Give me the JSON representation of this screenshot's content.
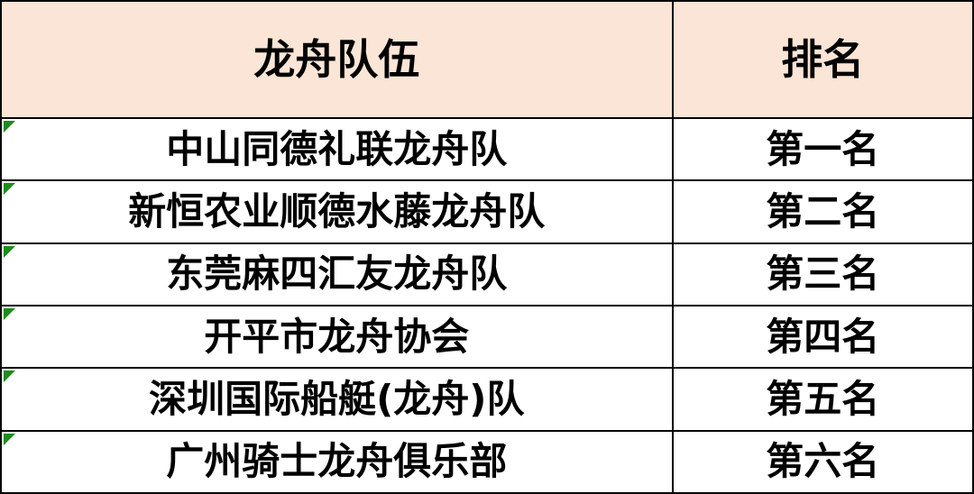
{
  "table": {
    "header": {
      "team": "龙舟队伍",
      "rank": "排名"
    },
    "rows": [
      {
        "team": "中山同德礼联龙舟队",
        "rank": "第一名"
      },
      {
        "team": "新恒农业顺德水藤龙舟队",
        "rank": "第二名"
      },
      {
        "team": "东莞麻四汇友龙舟队",
        "rank": "第三名"
      },
      {
        "team": "开平市龙舟协会",
        "rank": "第四名"
      },
      {
        "team": "深圳国际船艇(龙舟)队",
        "rank": "第五名"
      },
      {
        "team": "广州骑士龙舟俱乐部",
        "rank": "第六名"
      }
    ]
  },
  "icons": {
    "cell_flag": "green-corner-triangle"
  },
  "colors": {
    "header_bg": "#FBE5D6",
    "row_bg": "#FFFFFF",
    "border": "#000000",
    "text": "#000000",
    "triangle": "#1E8B1E"
  }
}
